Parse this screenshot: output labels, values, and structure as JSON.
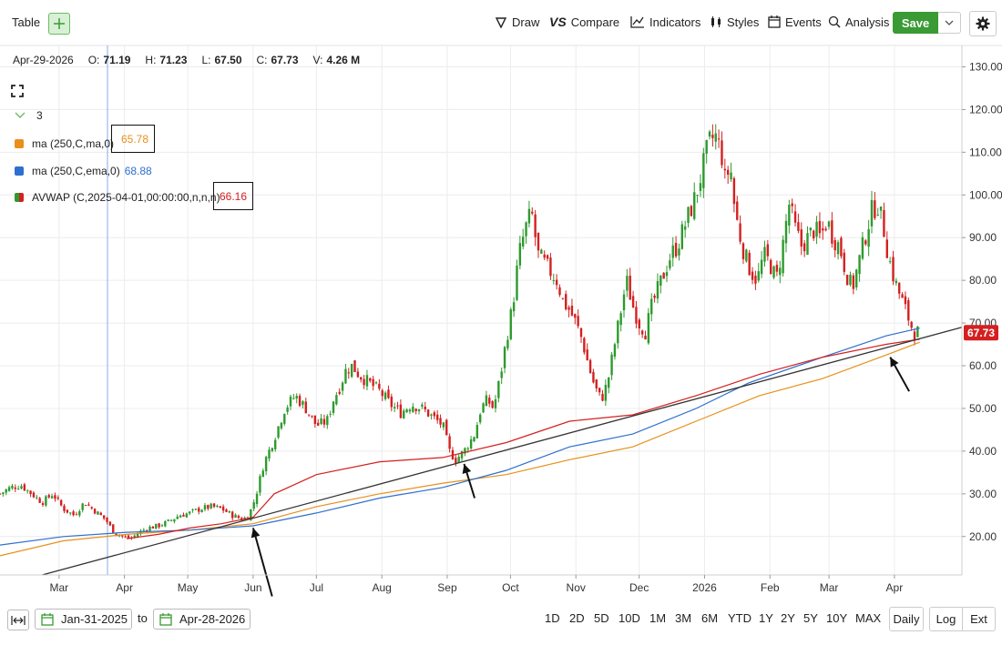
{
  "toolbar": {
    "table_label": "Table",
    "draw_label": "Draw",
    "compare_label": "Compare",
    "indicators_label": "Indicators",
    "styles_label": "Styles",
    "events_label": "Events",
    "analysis_label": "Analysis",
    "save_label": "Save"
  },
  "ohlc": {
    "date": "Apr-29-2026",
    "o_label": "O:",
    "o": "71.19",
    "h_label": "H:",
    "h": "71.23",
    "l_label": "L:",
    "l": "67.50",
    "c_label": "C:",
    "c": "67.73",
    "v_label": "V:",
    "v": "4.26 M"
  },
  "legend": {
    "count": "3",
    "items": [
      {
        "label": "ma (250,C,ma,0)",
        "value": "65.78",
        "color": "#e8901a"
      },
      {
        "label": "ma (250,C,ema,0)",
        "value": "68.88",
        "color": "#2f6fcf"
      },
      {
        "label": "AVWAP (C,2025-04-01,00:00:00,n,n,n)",
        "value": "66.16",
        "color": "#d42020"
      }
    ]
  },
  "bottom": {
    "start_date": "Jan-31-2025",
    "to_label": "to",
    "end_date": "Apr-28-2026",
    "ranges": [
      "1D",
      "2D",
      "5D",
      "10D",
      "1M",
      "3M",
      "6M",
      "YTD",
      "1Y",
      "2Y",
      "5Y",
      "10Y",
      "MAX"
    ],
    "daily_label": "Daily",
    "log_label": "Log",
    "ext_label": "Ext"
  },
  "chart_data": {
    "type": "candlestick",
    "title": "",
    "ylim": [
      11,
      135
    ],
    "y_ticks": [
      "20.00",
      "30.00",
      "40.00",
      "50.00",
      "60.00",
      "70.00",
      "80.00",
      "90.00",
      "100.00",
      "110.00",
      "120.00",
      "130.00"
    ],
    "x_ticks": [
      "Mar",
      "Apr",
      "May",
      "Jun",
      "Jul",
      "Aug",
      "Sep",
      "Oct",
      "Nov",
      "Dec",
      "2026",
      "Feb",
      "Mar",
      "Apr"
    ],
    "x_range_days": [
      0,
      456
    ],
    "x_tick_days": [
      28,
      59,
      89,
      120,
      150,
      181,
      212,
      242,
      273,
      303,
      334,
      365,
      393,
      424
    ],
    "last_price": "67.73",
    "last_price_color": "#d42020",
    "closes": [
      [
        0,
        30
      ],
      [
        5,
        31.5
      ],
      [
        10,
        32
      ],
      [
        15,
        30
      ],
      [
        20,
        28
      ],
      [
        25,
        30
      ],
      [
        30,
        26.5
      ],
      [
        35,
        25
      ],
      [
        40,
        28
      ],
      [
        45,
        26
      ],
      [
        50,
        24
      ],
      [
        54,
        21
      ],
      [
        58,
        20
      ],
      [
        62,
        19.5
      ],
      [
        66,
        21
      ],
      [
        70,
        22
      ],
      [
        75,
        22.5
      ],
      [
        80,
        23.5
      ],
      [
        85,
        25
      ],
      [
        90,
        25.5
      ],
      [
        95,
        26.5
      ],
      [
        100,
        27
      ],
      [
        105,
        26.5
      ],
      [
        110,
        25
      ],
      [
        115,
        24
      ],
      [
        118,
        25
      ],
      [
        121,
        29
      ],
      [
        125,
        37
      ],
      [
        130,
        43
      ],
      [
        135,
        50
      ],
      [
        140,
        53
      ],
      [
        145,
        50
      ],
      [
        150,
        46
      ],
      [
        155,
        47
      ],
      [
        158,
        52
      ],
      [
        161,
        55
      ],
      [
        164,
        59
      ],
      [
        167,
        60
      ],
      [
        170,
        58
      ],
      [
        175,
        56
      ],
      [
        180,
        54
      ],
      [
        185,
        51
      ],
      [
        190,
        49
      ],
      [
        195,
        51
      ],
      [
        200,
        50
      ],
      [
        205,
        48
      ],
      [
        210,
        46
      ],
      [
        213,
        40
      ],
      [
        216,
        38
      ],
      [
        220,
        40
      ],
      [
        225,
        44
      ],
      [
        228,
        50
      ],
      [
        231,
        52
      ],
      [
        234,
        50
      ],
      [
        237,
        57
      ],
      [
        240,
        66
      ],
      [
        243,
        74
      ],
      [
        246,
        86
      ],
      [
        249,
        92
      ],
      [
        252,
        96
      ],
      [
        255,
        86
      ],
      [
        258,
        84
      ],
      [
        261,
        82
      ],
      [
        264,
        80
      ],
      [
        267,
        75
      ],
      [
        270,
        73
      ],
      [
        273,
        70
      ],
      [
        276,
        66
      ],
      [
        279,
        60
      ],
      [
        282,
        55
      ],
      [
        285,
        52
      ],
      [
        288,
        56
      ],
      [
        291,
        64
      ],
      [
        294,
        72
      ],
      [
        297,
        80
      ],
      [
        300,
        74
      ],
      [
        303,
        70
      ],
      [
        306,
        68
      ],
      [
        309,
        74
      ],
      [
        312,
        78
      ],
      [
        315,
        82
      ],
      [
        318,
        86
      ],
      [
        321,
        88
      ],
      [
        324,
        92
      ],
      [
        327,
        96
      ],
      [
        330,
        100
      ],
      [
        333,
        106
      ],
      [
        336,
        112
      ],
      [
        339,
        114
      ],
      [
        342,
        110
      ],
      [
        344,
        102
      ],
      [
        346,
        108
      ],
      [
        348,
        98
      ],
      [
        350,
        92
      ],
      [
        353,
        86
      ],
      [
        356,
        82
      ],
      [
        359,
        80
      ],
      [
        362,
        86
      ],
      [
        365,
        84
      ],
      [
        368,
        80
      ],
      [
        371,
        88
      ],
      [
        374,
        98
      ],
      [
        377,
        92
      ],
      [
        380,
        88
      ],
      [
        383,
        90
      ],
      [
        386,
        92
      ],
      [
        389,
        90
      ],
      [
        392,
        94
      ],
      [
        395,
        90
      ],
      [
        398,
        88
      ],
      [
        401,
        82
      ],
      [
        404,
        78
      ],
      [
        407,
        84
      ],
      [
        410,
        90
      ],
      [
        413,
        96
      ],
      [
        416,
        98
      ],
      [
        419,
        92
      ],
      [
        421,
        86
      ],
      [
        424,
        80
      ],
      [
        427,
        76
      ],
      [
        430,
        72
      ],
      [
        433,
        68
      ],
      [
        436,
        67.73
      ]
    ],
    "series": [
      {
        "name": "ma (250,C,ma,0)",
        "color": "#e8901a",
        "points": [
          [
            0,
            15.5
          ],
          [
            30,
            19
          ],
          [
            60,
            20.5
          ],
          [
            90,
            21.5
          ],
          [
            120,
            23
          ],
          [
            150,
            27
          ],
          [
            180,
            30
          ],
          [
            210,
            32.5
          ],
          [
            240,
            34.5
          ],
          [
            270,
            38
          ],
          [
            300,
            41
          ],
          [
            330,
            47
          ],
          [
            360,
            53
          ],
          [
            390,
            57
          ],
          [
            420,
            62.5
          ],
          [
            436,
            65.5
          ]
        ]
      },
      {
        "name": "ma (250,C,ema,0)",
        "color": "#2f6fcf",
        "points": [
          [
            0,
            18
          ],
          [
            30,
            20
          ],
          [
            60,
            21
          ],
          [
            90,
            21.5
          ],
          [
            120,
            22.5
          ],
          [
            150,
            25.5
          ],
          [
            180,
            29
          ],
          [
            210,
            31.5
          ],
          [
            240,
            35.5
          ],
          [
            270,
            41
          ],
          [
            300,
            44
          ],
          [
            330,
            50
          ],
          [
            355,
            56
          ],
          [
            390,
            62
          ],
          [
            420,
            67
          ],
          [
            436,
            68.8
          ]
        ]
      },
      {
        "name": "AVWAP (C,2025-04-01,00:00:00,n,n,n)",
        "color": "#d42020",
        "points": [
          [
            60,
            19.5
          ],
          [
            75,
            20.5
          ],
          [
            90,
            22
          ],
          [
            105,
            23
          ],
          [
            120,
            24.5
          ],
          [
            130,
            30
          ],
          [
            150,
            34.5
          ],
          [
            180,
            37.5
          ],
          [
            210,
            38.5
          ],
          [
            240,
            42
          ],
          [
            270,
            47
          ],
          [
            300,
            48.5
          ],
          [
            330,
            53
          ],
          [
            360,
            58
          ],
          [
            390,
            62
          ],
          [
            420,
            65
          ],
          [
            436,
            66.2
          ]
        ]
      },
      {
        "name": "trendline",
        "color": "#333333",
        "points": [
          [
            20,
            11
          ],
          [
            456,
            69
          ]
        ]
      }
    ],
    "arrows": [
      [
        120,
        22,
        129,
        6
      ],
      [
        220,
        37,
        225,
        29
      ],
      [
        422,
        62,
        431,
        54
      ]
    ]
  }
}
